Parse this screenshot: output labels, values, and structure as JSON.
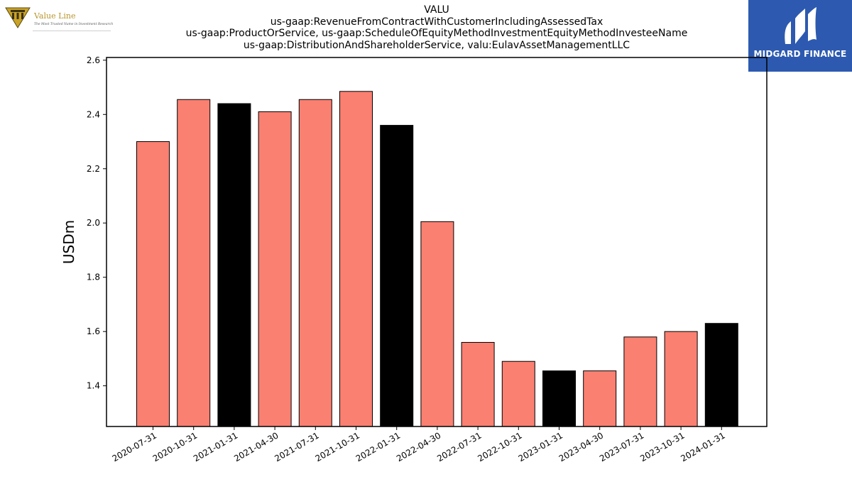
{
  "header": {
    "left_logo": {
      "name": "Value Line",
      "tagline": "The Most Trusted Name in Investment Research"
    },
    "right_logo": {
      "name": "MIDGARD FINANCE"
    }
  },
  "chart_data": {
    "type": "bar",
    "title_lines": [
      "VALU",
      "us-gaap:RevenueFromContractWithCustomerIncludingAssessedTax",
      "us-gaap:ProductOrService, us-gaap:ScheduleOfEquityMethodInvestmentEquityMethodInvesteeName",
      "us-gaap:DistributionAndShareholderService, valu:EulavAssetManagementLLC"
    ],
    "xlabel": "",
    "ylabel": "USDm",
    "ylim": [
      1.25,
      2.61
    ],
    "yticks": [
      1.4,
      1.6,
      1.8,
      2.0,
      2.2,
      2.4,
      2.6
    ],
    "categories": [
      "2020-07-31",
      "2020-10-31",
      "2021-01-31",
      "2021-04-30",
      "2021-07-31",
      "2021-10-31",
      "2022-01-31",
      "2022-04-30",
      "2022-07-31",
      "2022-10-31",
      "2023-01-31",
      "2023-04-30",
      "2023-07-31",
      "2023-10-31",
      "2024-01-31"
    ],
    "values": [
      2.3,
      2.455,
      2.44,
      2.41,
      2.455,
      2.485,
      2.36,
      2.005,
      1.56,
      1.49,
      1.455,
      1.455,
      1.58,
      1.6,
      1.63
    ],
    "bar_colors": [
      "#fa8072",
      "#fa8072",
      "#000000",
      "#fa8072",
      "#fa8072",
      "#fa8072",
      "#000000",
      "#fa8072",
      "#fa8072",
      "#fa8072",
      "#000000",
      "#fa8072",
      "#fa8072",
      "#fa8072",
      "#000000"
    ],
    "grid": false,
    "legend": "none"
  }
}
